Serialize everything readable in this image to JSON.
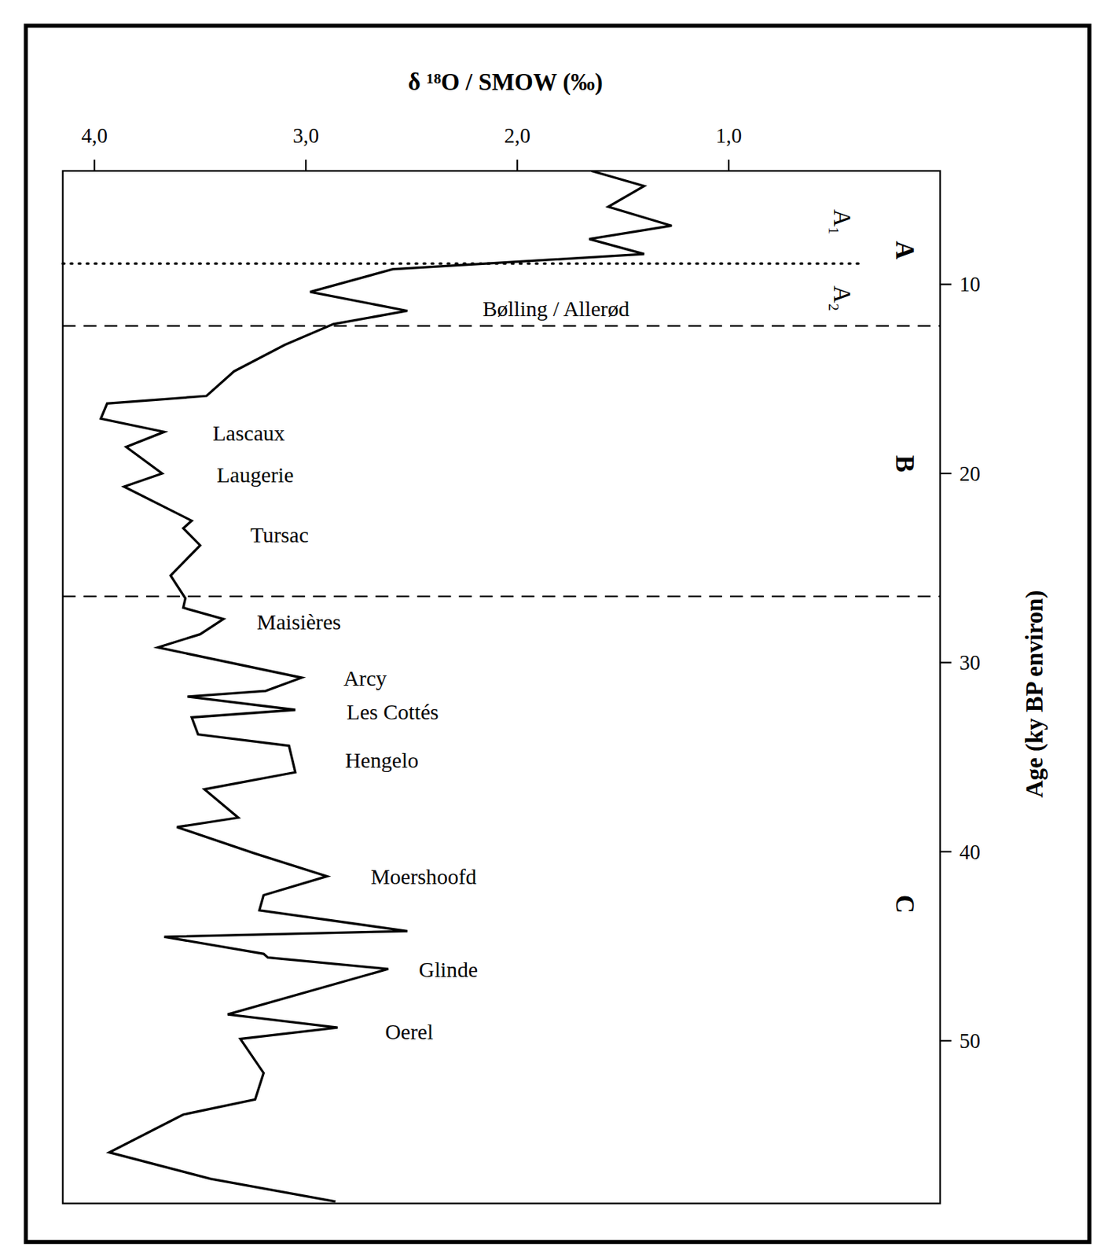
{
  "chart_data": {
    "type": "line",
    "x_label": "δ ¹⁸O / SMOW (‰)",
    "y_label": "Age (ky BP environ)",
    "xlim": [
      4.15,
      0
    ],
    "xticks": [
      {
        "value": 4,
        "label": "4,0"
      },
      {
        "value": 3,
        "label": "3,0"
      },
      {
        "value": 2,
        "label": "2,0"
      },
      {
        "value": 1,
        "label": "1,0"
      }
    ],
    "ylim": [
      4,
      58.6
    ],
    "yticks": [
      10,
      20,
      30,
      40,
      50
    ],
    "series": [
      {
        "color": "#000000",
        "x": [
          1.65,
          1.4,
          1.57,
          1.27,
          1.66,
          1.4,
          2.59,
          2.98,
          2.52,
          2.87,
          3.1,
          3.34,
          3.47,
          3.94,
          3.97,
          3.67,
          3.85,
          3.68,
          3.86,
          3.54,
          3.58,
          3.5,
          3.64,
          3.57,
          3.58,
          3.39,
          3.5,
          3.7,
          3.02,
          3.19,
          3.56,
          3.05,
          3.54,
          3.51,
          3.08,
          3.05,
          3.48,
          3.32,
          3.61,
          3.24,
          2.9,
          3.2,
          3.22,
          2.52,
          3.67,
          3.2,
          3.18,
          2.61,
          3.37,
          2.85,
          3.31,
          3.2,
          3.24,
          3.58,
          3.93,
          3.45,
          2.86
        ],
        "values": [
          4.0,
          4.8,
          5.9,
          6.9,
          7.6,
          8.4,
          9.2,
          10.4,
          11.4,
          12.1,
          13.2,
          14.6,
          15.9,
          16.3,
          17.1,
          17.8,
          18.6,
          20.0,
          20.7,
          22.5,
          22.9,
          23.8,
          25.4,
          26.6,
          27.1,
          27.7,
          28.5,
          29.2,
          30.8,
          31.5,
          31.8,
          32.5,
          32.9,
          33.8,
          34.4,
          35.8,
          36.7,
          38.2,
          38.7,
          40.1,
          41.3,
          42.3,
          43.1,
          44.2,
          44.5,
          45.4,
          45.6,
          46.2,
          48.6,
          49.3,
          49.9,
          51.7,
          53.1,
          53.9,
          55.9,
          57.3,
          58.5
        ]
      }
    ],
    "boundaries": [
      {
        "value": 8.9,
        "line_style": "dotted"
      },
      {
        "value": 12.2,
        "line_style": "dashed"
      },
      {
        "value": 26.5,
        "line_style": "dashed"
      }
    ],
    "zones": [
      "A",
      "B",
      "C"
    ],
    "subzones": [
      "A₁",
      "A₂"
    ],
    "annotations": [
      "Bølling / Allerød",
      "Lascaux",
      "Laugerie",
      "Tursac",
      "Maisières",
      "Arcy",
      "Les Cottés",
      "Hengelo",
      "Moershoofd",
      "Glinde",
      "Oerel"
    ]
  }
}
